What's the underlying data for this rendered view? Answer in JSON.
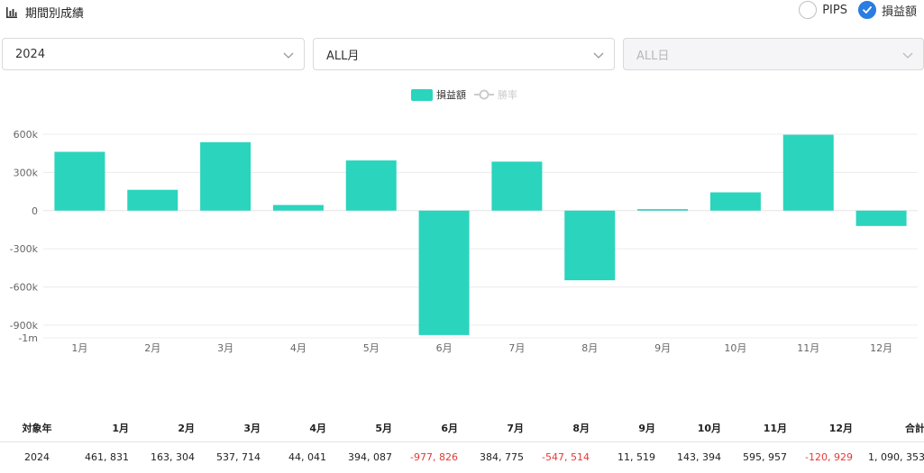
{
  "header": {
    "title": "期間別成績",
    "toggle_pips": "PIPS",
    "toggle_profit": "損益額",
    "pips_checked": false,
    "profit_checked": true
  },
  "filters": {
    "year": "2024",
    "month": "ALL月",
    "day": "ALL日"
  },
  "chart_data": {
    "type": "bar",
    "categories": [
      "1月",
      "2月",
      "3月",
      "4月",
      "5月",
      "6月",
      "7月",
      "8月",
      "9月",
      "10月",
      "11月",
      "12月"
    ],
    "series": [
      {
        "name": "損益額",
        "color": "#2ad4bd",
        "values": [
          461831,
          163304,
          537714,
          44041,
          394087,
          -977826,
          384775,
          -547514,
          11519,
          143394,
          595957,
          -120929
        ]
      }
    ],
    "legend": [
      {
        "name": "損益額",
        "type": "bar",
        "color": "#2ad4bd",
        "active": true
      },
      {
        "name": "勝率",
        "type": "line",
        "color": "#cccccc",
        "active": false
      }
    ],
    "legend_position": "top-center",
    "ylim": [
      -1000000,
      600000
    ],
    "yticks": [
      600000,
      300000,
      0,
      -300000,
      -600000,
      -900000,
      -1000000
    ],
    "ytick_labels": [
      "600k",
      "300k",
      "0",
      "-300k",
      "-600k",
      "-900k",
      "-1m"
    ],
    "grid": true
  },
  "table": {
    "headers": [
      "対象年",
      "1月",
      "2月",
      "3月",
      "4月",
      "5月",
      "6月",
      "7月",
      "8月",
      "9月",
      "10月",
      "11月",
      "12月",
      "合計"
    ],
    "rows": [
      [
        "2024",
        "461, 831",
        "163, 304",
        "537, 714",
        "44, 041",
        "394, 087",
        "-977, 826",
        "384, 775",
        "-547, 514",
        "11, 519",
        "143, 394",
        "595, 957",
        "-120, 929",
        "1, 090, 353"
      ]
    ]
  }
}
